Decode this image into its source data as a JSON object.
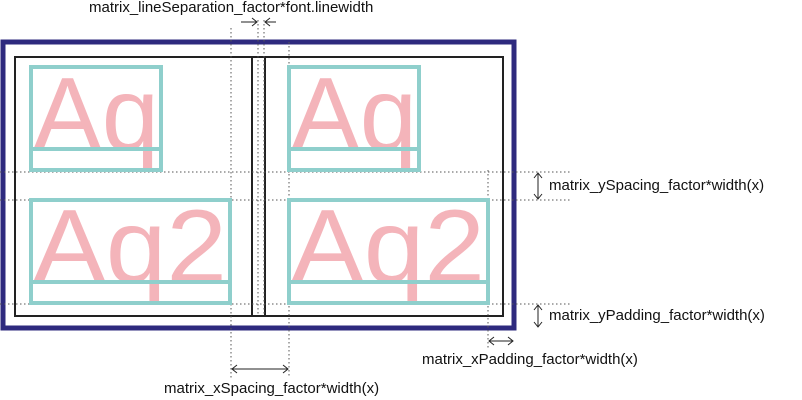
{
  "cells": [
    {
      "text": "Aq"
    },
    {
      "text": "Aq"
    },
    {
      "text": "Aq2"
    },
    {
      "text": "Aq2"
    }
  ],
  "labels": {
    "line_separation": "matrix_lineSeparation_factor*font.linewidth",
    "y_spacing": "matrix_ySpacing_factor*width(x)",
    "y_padding": "matrix_yPadding_factor*width(x)",
    "x_padding": "matrix_xPadding_factor*width(x)",
    "x_spacing": "matrix_xSpacing_factor*width(x)"
  },
  "colors": {
    "outer_frame": "#2e2a7e",
    "glyph": "#f4b4ba",
    "glyph_box": "#8fcfcc",
    "line": "#222222",
    "dotted": "#555555"
  }
}
